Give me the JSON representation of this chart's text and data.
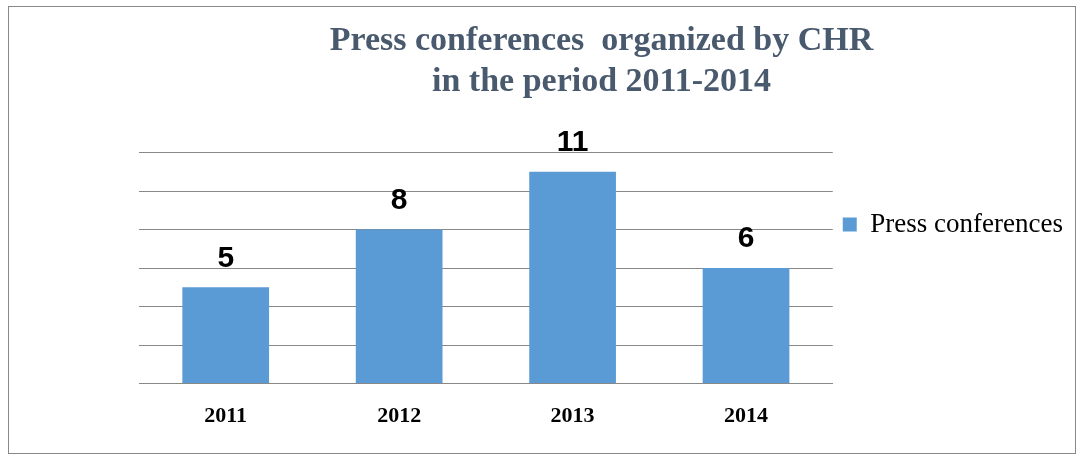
{
  "chart_data": {
    "type": "bar",
    "title": "Press conferences  organized by CHR\nin the period 2011-2014",
    "categories": [
      "2011",
      "2012",
      "2013",
      "2014"
    ],
    "series": [
      {
        "name": "Press conferences",
        "color": "#5b9bd5",
        "values": [
          5,
          8,
          11,
          6
        ]
      }
    ],
    "ylim": [
      0,
      12
    ],
    "yticks": [
      {
        "value": 0,
        "label": null
      },
      {
        "value": 2,
        "label": null
      },
      {
        "value": 4,
        "label": null
      },
      {
        "value": 6,
        "label": null
      },
      {
        "value": 8,
        "label": null
      },
      {
        "value": 10,
        "label": null
      },
      {
        "value": 12,
        "label": null
      }
    ],
    "grid": "y",
    "legend": "right",
    "tick_labels": "x",
    "data_labels": true
  }
}
